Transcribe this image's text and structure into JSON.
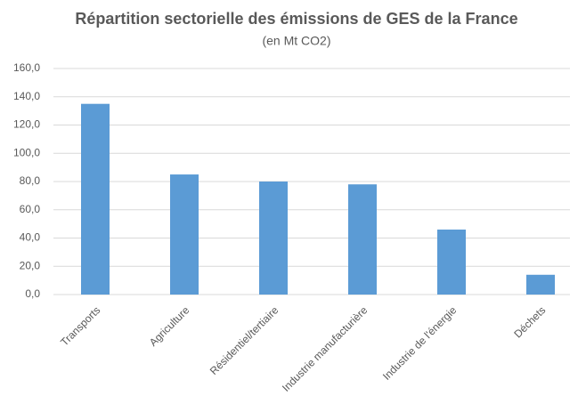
{
  "chart_data": {
    "type": "bar",
    "title": "Répartition sectorielle des émissions de GES de la France",
    "subtitle": "(en Mt CO2)",
    "categories": [
      "Transports",
      "Agriculture",
      "Résidentiel/tertiaire",
      "Industrie manufacturière",
      "Industrie de l'énergie",
      "Déchets"
    ],
    "values": [
      135,
      85,
      80,
      78,
      46,
      14
    ],
    "color": "#5b9bd5",
    "ylim": [
      0,
      160
    ],
    "yticks": [
      {
        "value": 0,
        "label": "0,0"
      },
      {
        "value": 20,
        "label": "20,0"
      },
      {
        "value": 40,
        "label": "40,0"
      },
      {
        "value": 60,
        "label": "60,0"
      },
      {
        "value": 80,
        "label": "80,0"
      },
      {
        "value": 100,
        "label": "100,0"
      },
      {
        "value": 120,
        "label": "120,0"
      },
      {
        "value": 140,
        "label": "140,0"
      },
      {
        "value": 160,
        "label": "160,0"
      }
    ],
    "grid": true
  }
}
